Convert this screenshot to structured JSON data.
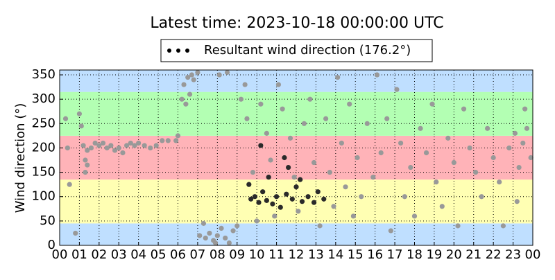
{
  "chart_data": {
    "type": "scatter",
    "title": "Latest time: 2023-10-18 00:00:00 UTC",
    "y_label": "Wind direction (°)",
    "xlim": [
      0,
      24
    ],
    "ylim": [
      0,
      360
    ],
    "xticks": [
      {
        "value": 0,
        "label": "00"
      },
      {
        "value": 1,
        "label": "01"
      },
      {
        "value": 2,
        "label": "02"
      },
      {
        "value": 3,
        "label": "03"
      },
      {
        "value": 4,
        "label": "04"
      },
      {
        "value": 5,
        "label": "05"
      },
      {
        "value": 6,
        "label": "06"
      },
      {
        "value": 7,
        "label": "07"
      },
      {
        "value": 8,
        "label": "08"
      },
      {
        "value": 9,
        "label": "09"
      },
      {
        "value": 10,
        "label": "10"
      },
      {
        "value": 11,
        "label": "11"
      },
      {
        "value": 12,
        "label": "12"
      },
      {
        "value": 13,
        "label": "13"
      },
      {
        "value": 14,
        "label": "14"
      },
      {
        "value": 15,
        "label": "15"
      },
      {
        "value": 16,
        "label": "16"
      },
      {
        "value": 17,
        "label": "17"
      },
      {
        "value": 18,
        "label": "18"
      },
      {
        "value": 19,
        "label": "19"
      },
      {
        "value": 20,
        "label": "20"
      },
      {
        "value": 21,
        "label": "21"
      },
      {
        "value": 22,
        "label": "22"
      },
      {
        "value": 23,
        "label": "23"
      },
      {
        "value": 24,
        "label": "00"
      }
    ],
    "yticks": [
      0,
      50,
      100,
      150,
      200,
      250,
      300,
      350
    ],
    "grid": true,
    "legend": "top",
    "legend_color": "#000000",
    "bands": [
      {
        "from": 0,
        "to": 45,
        "color": "#bfdfff"
      },
      {
        "from": 45,
        "to": 135,
        "color": "#ffffb3"
      },
      {
        "from": 135,
        "to": 225,
        "color": "#ffb3b8"
      },
      {
        "from": 225,
        "to": 315,
        "color": "#b3ffb3"
      },
      {
        "from": 315,
        "to": 360,
        "color": "#bfdfff"
      }
    ],
    "series": [
      {
        "name": "Resultant wind direction (176.2°)",
        "color": "#2a2a2a",
        "x": [
          9.7,
          9.9,
          10.1,
          10.3,
          10.5,
          10.8,
          11.0,
          11.2,
          11.5,
          11.8,
          12.0,
          12.3,
          12.6,
          12.9,
          13.1,
          13.4,
          10.2,
          11.4,
          12.2,
          11.6,
          9.6,
          10.6
        ],
        "values": [
          95,
          100,
          88,
          110,
          92,
          85,
          100,
          78,
          105,
          95,
          120,
          90,
          100,
          88,
          110,
          95,
          205,
          180,
          135,
          160,
          125,
          140
        ]
      },
      {
        "color": "#999999",
        "x": [
          0.3,
          0.4,
          0.5,
          0.8,
          1.0,
          1.1,
          1.2,
          1.3,
          1.4,
          1.6,
          1.8,
          2.0,
          2.2,
          2.4,
          2.6,
          2.8,
          3.0,
          3.2,
          3.4,
          3.6,
          3.8,
          4.0,
          4.3,
          4.6,
          4.9,
          5.2,
          5.5,
          5.9,
          6.0,
          1.3,
          1.4,
          6.2,
          6.3,
          6.5,
          6.6,
          6.8,
          7.0,
          6.4,
          6.7,
          7.1,
          7.3,
          7.4,
          7.6,
          7.8,
          8.0,
          8.2,
          8.4,
          8.6,
          8.8,
          9.0,
          8.1,
          8.5,
          7.9,
          9.2,
          9.4,
          9.5,
          9.8,
          10.0,
          10.2,
          10.5,
          10.7,
          10.9,
          11.1,
          11.3,
          11.7,
          11.9,
          12.1,
          12.4,
          12.7,
          12.9,
          13.2,
          13.5,
          13.7,
          13.9,
          14.1,
          14.3,
          14.5,
          14.7,
          14.9,
          15.1,
          15.3,
          15.6,
          15.9,
          16.1,
          16.3,
          16.6,
          16.8,
          17.1,
          17.3,
          17.5,
          17.8,
          18.0,
          18.3,
          18.6,
          18.9,
          19.1,
          19.4,
          19.7,
          20.0,
          20.2,
          20.5,
          20.8,
          21.1,
          21.4,
          21.7,
          22.0,
          22.3,
          22.5,
          22.8,
          23.1,
          23.3,
          23.5,
          23.7,
          23.9,
          23.6,
          23.2
        ],
        "values": [
          260,
          200,
          125,
          25,
          270,
          245,
          205,
          175,
          195,
          200,
          210,
          205,
          210,
          200,
          205,
          195,
          200,
          190,
          205,
          210,
          205,
          210,
          205,
          200,
          205,
          215,
          215,
          215,
          225,
          150,
          165,
          300,
          330,
          345,
          310,
          340,
          355,
          290,
          350,
          20,
          45,
          15,
          25,
          10,
          20,
          35,
          15,
          5,
          30,
          40,
          350,
          355,
          5,
          300,
          330,
          260,
          150,
          50,
          290,
          230,
          175,
          60,
          330,
          280,
          220,
          140,
          70,
          250,
          300,
          170,
          40,
          260,
          150,
          80,
          345,
          210,
          120,
          290,
          60,
          180,
          100,
          250,
          140,
          350,
          190,
          260,
          30,
          320,
          210,
          100,
          160,
          60,
          240,
          190,
          290,
          130,
          80,
          220,
          170,
          40,
          280,
          200,
          150,
          100,
          240,
          180,
          130,
          40,
          200,
          230,
          160,
          210,
          240,
          180,
          280,
          90
        ]
      }
    ]
  }
}
